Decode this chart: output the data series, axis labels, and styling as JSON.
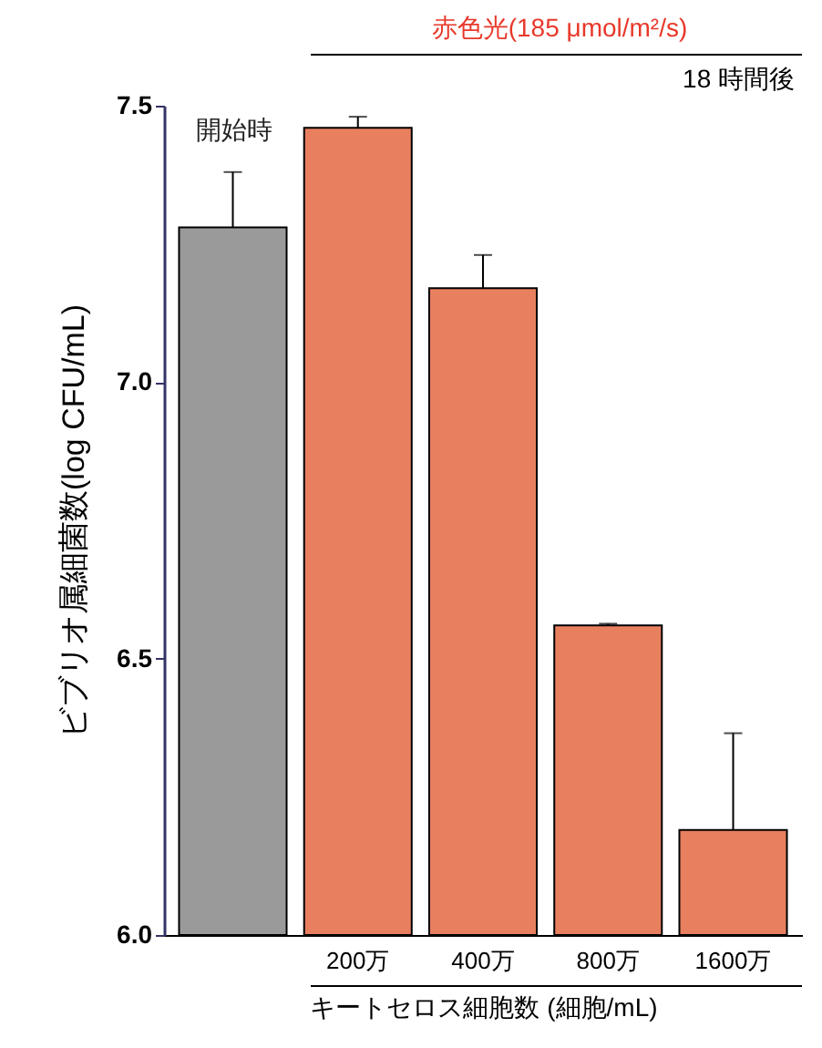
{
  "chart_data": {
    "type": "bar",
    "xlabel": "キートセロス細胞数 (細胞/mL)",
    "ylabel": "ビブリオ属細菌数(log CFU/mL)",
    "categories": [
      null,
      "200万",
      "400万",
      "800万",
      "1600万"
    ],
    "values": [
      7.28,
      7.46,
      7.17,
      6.56,
      6.19
    ],
    "colors": [
      "#9a9a9a",
      "#e8805f",
      "#e8805f",
      "#e8805f",
      "#e8805f"
    ],
    "errors": [
      [
        7.28,
        7.38
      ],
      [
        7.46,
        7.48
      ],
      [
        7.17,
        7.23
      ],
      [
        6.56,
        6.563
      ],
      [
        6.19,
        6.365
      ]
    ],
    "ylim": [
      6.0,
      7.5
    ],
    "yticks": [
      {
        "value": 6,
        "label": "6.0"
      },
      {
        "value": 6.5,
        "label": "6.5"
      },
      {
        "value": 7,
        "label": "7.0"
      },
      {
        "value": 7.5,
        "label": "7.5"
      }
    ],
    "annotations": [
      "開始時",
      "赤色光(185 μmol/m²/s)",
      "18 時間後"
    ],
    "grid": false
  }
}
